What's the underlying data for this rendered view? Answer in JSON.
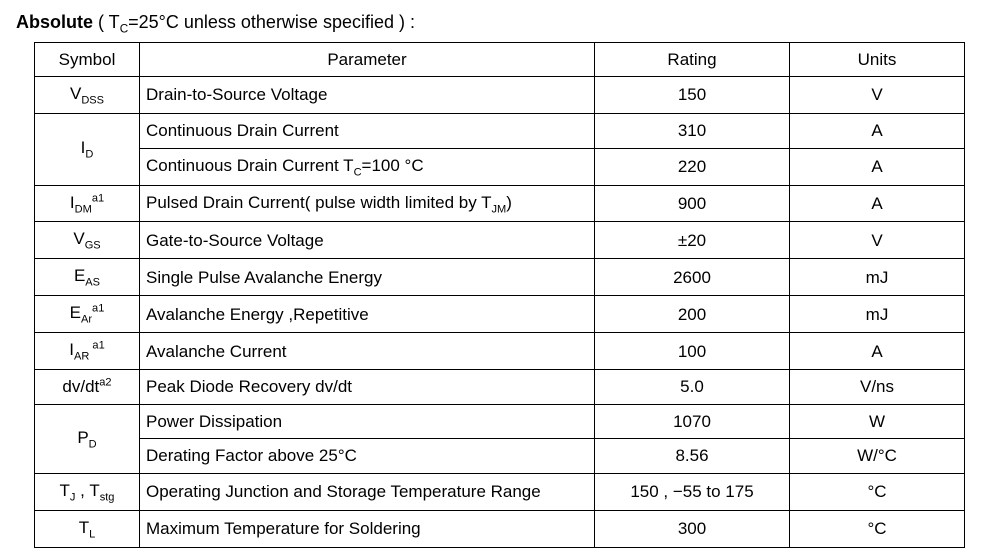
{
  "heading": {
    "title": "Absolute",
    "condition_prefix": " ( T",
    "condition_sub": "C",
    "condition_suffix": "=25°C  unless otherwise specified ) :"
  },
  "columns": {
    "symbol": "Symbol",
    "parameter": "Parameter",
    "rating": "Rating",
    "units": "Units"
  },
  "rows": {
    "vdss": {
      "sym_base": "V",
      "sym_sub": "DSS",
      "param": "Drain-to-Source Voltage",
      "rating": "150",
      "units": "V"
    },
    "id": {
      "sym_base": "I",
      "sym_sub": "D"
    },
    "id1": {
      "param": "Continuous Drain Current",
      "rating": "310",
      "units": "A"
    },
    "id2": {
      "param_pre": "Continuous Drain Current T",
      "param_sub": "C",
      "param_post": "=100 °C",
      "rating": "220",
      "units": "A"
    },
    "idm": {
      "sym_base": "I",
      "sym_sub": "DM",
      "sym_sup": "a1",
      "param_pre": "Pulsed Drain Current( pulse width limited by T",
      "param_sub": "JM",
      "param_post": ")",
      "rating": "900",
      "units": "A"
    },
    "vgs": {
      "sym_base": "V",
      "sym_sub": "GS",
      "param": "Gate-to-Source Voltage",
      "rating": "±20",
      "units": "V"
    },
    "eas": {
      "sym_base": "E",
      "sym_sub": "AS",
      "param": "Single Pulse Avalanche Energy",
      "rating": "2600",
      "units": "mJ"
    },
    "ear": {
      "sym_base": "E",
      "sym_sub": "Ar",
      "sym_sup": "a1",
      "param": "Avalanche Energy ,Repetitive",
      "rating": "200",
      "units": "mJ"
    },
    "iar": {
      "sym_base": "I",
      "sym_sub": "AR ",
      "sym_sup": "a1",
      "param": "Avalanche Current",
      "rating": "100",
      "units": "A"
    },
    "dvdt": {
      "sym_txt": "dv/dt",
      "sym_sup": "a2",
      "param": "Peak Diode Recovery dv/dt",
      "rating": "5.0",
      "units": "V/ns"
    },
    "pd": {
      "sym_base": "P",
      "sym_sub": "D"
    },
    "pd1": {
      "param": "Power Dissipation",
      "rating": "1070",
      "units": "W"
    },
    "pd2": {
      "param": "Derating Factor above 25°C",
      "rating": "8.56",
      "units": "W/°C"
    },
    "tjtstg": {
      "s1": "T",
      "s1sub": "J",
      "sep": " , ",
      "s2": "T",
      "s2sub": "stg",
      "param": "Operating Junction and Storage Temperature Range",
      "rating": "150 , −55 to 175",
      "units": "°C"
    },
    "tl": {
      "sym_base": "T",
      "sym_sub": "L",
      "param": "Maximum Temperature for Soldering",
      "rating": "300",
      "units": "°C"
    }
  }
}
